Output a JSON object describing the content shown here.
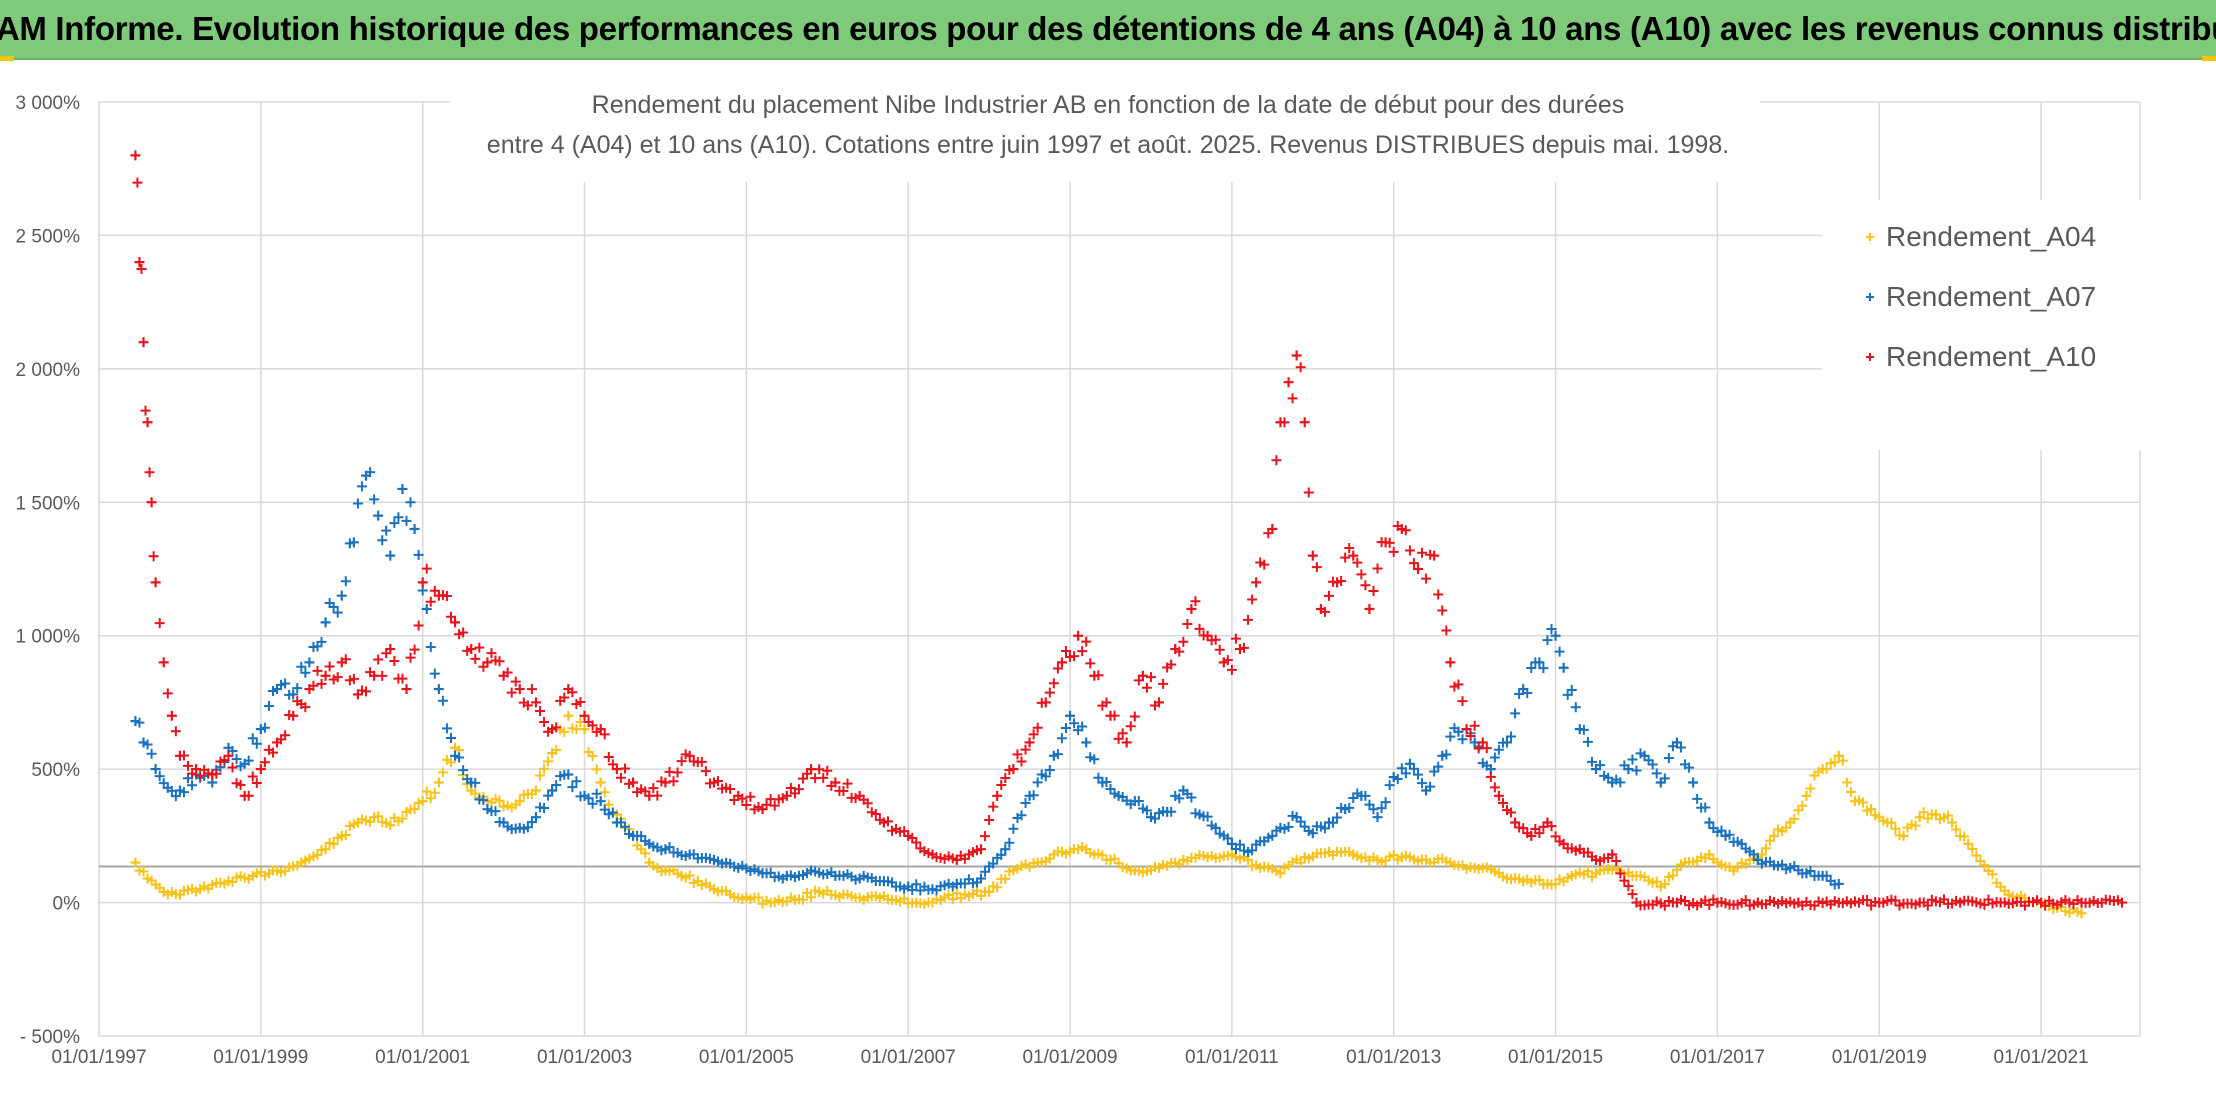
{
  "header": {
    "banner": "ADAM Informe. Evolution historique des performances en euros pour des détentions de 4 ans (A04) à 10 ans (A10) avec les revenus connus distribués"
  },
  "colors": {
    "banner_bg": "#7fc97a",
    "A04": "#f7c31a",
    "A07": "#1a72bf",
    "A10": "#e8141c",
    "grid": "#d9d9d9",
    "baseline": "#a6a6a6"
  },
  "chart_data": {
    "type": "scatter",
    "title_line1": "Rendement du placement Nibe Industrier AB en fonction de la date de début pour des durées",
    "title_line2": "entre 4 (A04) et 10 ans (A10). Cotations entre juin 1997 et août. 2025. Revenus DISTRIBUES depuis mai. 1998.",
    "ylim": [
      -500,
      3000
    ],
    "xlim": [
      1997.0,
      2022.0
    ],
    "y_ticks": [
      -500,
      0,
      500,
      1000,
      1500,
      2000,
      2500,
      3000
    ],
    "y_tick_labels": [
      "- 500%",
      "0%",
      "500%",
      "1 000%",
      "1 500%",
      "2 000%",
      "2 500%",
      "3 000%"
    ],
    "x_ticks": [
      1997,
      1999,
      2001,
      2003,
      2005,
      2007,
      2009,
      2011,
      2013,
      2015,
      2017,
      2019,
      2021
    ],
    "x_tick_labels": [
      "01/01/1997",
      "01/01/1999",
      "01/01/2001",
      "01/01/2003",
      "01/01/2005",
      "01/01/2007",
      "01/01/2009",
      "01/01/2011",
      "01/01/2013",
      "01/01/2015",
      "01/01/2017",
      "01/01/2019",
      "01/01/2021"
    ],
    "grid": true,
    "legend_position": "top-right",
    "marker": "+",
    "series": [
      {
        "name": "Rendement_A04",
        "color": "#f7c31a",
        "x": [
          1997.45,
          1997.6,
          1997.8,
          1998.0,
          1998.3,
          1998.6,
          1998.9,
          1999.2,
          1999.5,
          1999.8,
          2000.0,
          2000.2,
          2000.4,
          2000.6,
          2000.8,
          2001.0,
          2001.2,
          2001.4,
          2001.6,
          2001.8,
          2002.0,
          2002.2,
          2002.4,
          2002.6,
          2002.8,
          2003.0,
          2003.2,
          2003.4,
          2003.6,
          2003.8,
          2004.0,
          2004.2,
          2004.4,
          2004.6,
          2004.8,
          2005.0,
          2005.3,
          2005.6,
          2005.9,
          2006.2,
          2006.5,
          2006.8,
          2007.1,
          2007.4,
          2007.7,
          2008.0,
          2008.3,
          2008.6,
          2008.9,
          2009.2,
          2009.5,
          2009.8,
          2010.1,
          2010.4,
          2010.7,
          2011.0,
          2011.3,
          2011.6,
          2011.9,
          2012.2,
          2012.5,
          2012.8,
          2013.1,
          2013.4,
          2013.7,
          2014.0,
          2014.3,
          2014.6,
          2014.9,
          2015.2,
          2015.5,
          2015.8,
          2016.0,
          2016.3,
          2016.6,
          2016.9,
          2017.2,
          2017.5,
          2017.7,
          2017.9,
          2018.1,
          2018.3,
          2018.5,
          2018.7,
          2018.9,
          2019.1,
          2019.3,
          2019.5,
          2019.7,
          2019.9,
          2020.1,
          2020.3,
          2020.6,
          2020.9,
          2021.2,
          2021.5
        ],
        "y": [
          150,
          90,
          40,
          30,
          60,
          80,
          100,
          120,
          150,
          200,
          250,
          300,
          320,
          290,
          340,
          380,
          450,
          580,
          420,
          380,
          360,
          380,
          420,
          560,
          700,
          650,
          450,
          330,
          250,
          150,
          120,
          100,
          80,
          50,
          30,
          20,
          0,
          10,
          40,
          30,
          20,
          10,
          0,
          10,
          30,
          40,
          120,
          150,
          190,
          200,
          160,
          120,
          130,
          160,
          170,
          180,
          140,
          110,
          170,
          190,
          180,
          160,
          170,
          160,
          150,
          130,
          110,
          80,
          70,
          100,
          110,
          120,
          100,
          60,
          150,
          180,
          120,
          170,
          250,
          300,
          400,
          500,
          550,
          380,
          350,
          300,
          250,
          320,
          330,
          300,
          220,
          140,
          30,
          0,
          -20,
          -40
        ]
      },
      {
        "name": "Rendement_A07",
        "color": "#1a72bf",
        "x": [
          1997.45,
          1997.55,
          1997.7,
          1997.85,
          1998.0,
          1998.2,
          1998.4,
          1998.6,
          1998.8,
          1999.0,
          1999.2,
          1999.4,
          1999.6,
          1999.8,
          2000.0,
          2000.15,
          2000.3,
          2000.45,
          2000.6,
          2000.75,
          2000.9,
          2001.05,
          2001.2,
          2001.4,
          2001.6,
          2001.8,
          2002.0,
          2002.2,
          2002.4,
          2002.6,
          2002.8,
          2003.0,
          2003.2,
          2003.4,
          2003.6,
          2003.8,
          2004.0,
          2004.3,
          2004.6,
          2004.9,
          2005.2,
          2005.5,
          2005.8,
          2006.1,
          2006.4,
          2006.7,
          2007.0,
          2007.3,
          2007.6,
          2007.9,
          2008.2,
          2008.5,
          2008.8,
          2009.0,
          2009.2,
          2009.4,
          2009.6,
          2009.8,
          2010.0,
          2010.2,
          2010.4,
          2010.6,
          2010.8,
          2011.0,
          2011.2,
          2011.4,
          2011.6,
          2011.8,
          2012.0,
          2012.2,
          2012.4,
          2012.6,
          2012.8,
          2013.0,
          2013.2,
          2013.4,
          2013.6,
          2013.8,
          2014.0,
          2014.2,
          2014.4,
          2014.6,
          2014.8,
          2015.0,
          2015.1,
          2015.3,
          2015.5,
          2015.7,
          2015.9,
          2016.1,
          2016.3,
          2016.5,
          2016.7,
          2016.9,
          2017.1,
          2017.3,
          2017.5,
          2017.7,
          2017.9,
          2018.1,
          2018.3,
          2018.5
        ],
        "y": [
          680,
          600,
          500,
          430,
          420,
          480,
          450,
          580,
          520,
          650,
          800,
          780,
          900,
          1050,
          1150,
          1350,
          1600,
          1450,
          1300,
          1550,
          1400,
          1100,
          800,
          550,
          450,
          350,
          300,
          280,
          320,
          420,
          480,
          400,
          380,
          300,
          250,
          220,
          200,
          180,
          160,
          130,
          110,
          100,
          120,
          100,
          90,
          80,
          60,
          50,
          70,
          90,
          200,
          400,
          550,
          700,
          600,
          450,
          400,
          380,
          320,
          340,
          420,
          330,
          280,
          220,
          190,
          230,
          280,
          320,
          260,
          300,
          350,
          400,
          320,
          470,
          520,
          420,
          550,
          640,
          600,
          500,
          600,
          800,
          900,
          1000,
          880,
          650,
          500,
          450,
          500,
          550,
          450,
          600,
          450,
          300,
          250,
          220,
          160,
          140,
          130,
          110,
          100,
          70
        ]
      },
      {
        "name": "Rendement_A10",
        "color": "#e8141c",
        "x": [
          1997.45,
          1997.5,
          1997.55,
          1997.6,
          1997.65,
          1997.7,
          1997.8,
          1997.9,
          1998.0,
          1998.2,
          1998.4,
          1998.6,
          1998.8,
          1999.0,
          1999.2,
          1999.4,
          1999.6,
          1999.8,
          2000.0,
          2000.2,
          2000.4,
          2000.6,
          2000.8,
          2001.0,
          2001.2,
          2001.4,
          2001.6,
          2001.8,
          2002.0,
          2002.2,
          2002.4,
          2002.6,
          2002.8,
          2003.0,
          2003.2,
          2003.4,
          2003.6,
          2003.8,
          2004.0,
          2004.3,
          2004.6,
          2004.9,
          2005.2,
          2005.5,
          2005.8,
          2006.1,
          2006.4,
          2006.7,
          2007.0,
          2007.3,
          2007.6,
          2007.9,
          2008.1,
          2008.3,
          2008.5,
          2008.7,
          2008.9,
          2009.1,
          2009.3,
          2009.5,
          2009.7,
          2009.9,
          2010.1,
          2010.3,
          2010.5,
          2010.7,
          2010.9,
          2011.1,
          2011.3,
          2011.5,
          2011.6,
          2011.7,
          2011.8,
          2011.9,
          2012.0,
          2012.1,
          2012.3,
          2012.5,
          2012.7,
          2012.9,
          2013.1,
          2013.3,
          2013.5,
          2013.7,
          2013.9,
          2014.1,
          2014.3,
          2014.5,
          2014.7,
          2014.9,
          2015.1,
          2015.3,
          2015.5,
          2015.7,
          2016.0,
          2016.5,
          2017.0,
          2017.5,
          2018.0,
          2018.5,
          2019.0,
          2019.5,
          2020.0,
          2020.5,
          2021.0,
          2021.5,
          2022.0
        ],
        "y": [
          2800,
          2400,
          2100,
          1800,
          1500,
          1200,
          900,
          700,
          550,
          500,
          480,
          550,
          400,
          500,
          600,
          700,
          800,
          850,
          900,
          780,
          850,
          950,
          800,
          1200,
          1150,
          1050,
          950,
          900,
          850,
          800,
          750,
          650,
          800,
          700,
          650,
          500,
          450,
          400,
          450,
          550,
          450,
          400,
          350,
          400,
          500,
          450,
          400,
          300,
          250,
          180,
          160,
          200,
          400,
          500,
          600,
          750,
          900,
          1000,
          850,
          700,
          600,
          850,
          750,
          950,
          1100,
          1000,
          900,
          950,
          1200,
          1400,
          1800,
          1950,
          2050,
          1800,
          1300,
          1100,
          1200,
          1300,
          1100,
          1350,
          1400,
          1250,
          1300,
          900,
          650,
          600,
          400,
          300,
          250,
          300,
          220,
          200,
          160,
          180,
          0,
          0,
          0,
          0,
          0,
          0,
          0,
          0,
          0,
          0,
          0,
          0,
          0
        ]
      }
    ]
  }
}
